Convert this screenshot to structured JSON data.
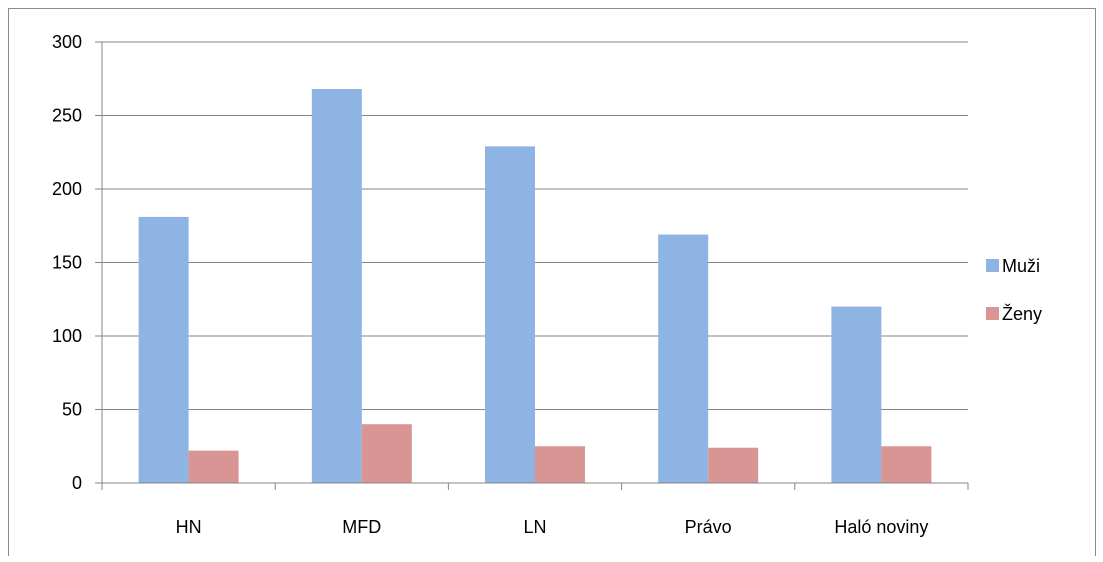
{
  "chart_data": {
    "type": "bar",
    "categories": [
      "HN",
      "MFD",
      "LN",
      "Právo",
      "Haló noviny"
    ],
    "series": [
      {
        "name": "Muži",
        "values": [
          181,
          268,
          229,
          169,
          120
        ],
        "color": "#8EB4E3"
      },
      {
        "name": "Ženy",
        "values": [
          22,
          40,
          25,
          24,
          25
        ],
        "color": "#D99594"
      }
    ],
    "ylim": [
      0,
      300
    ],
    "yticks": [
      0,
      50,
      100,
      150,
      200,
      250,
      300
    ],
    "grid": true,
    "legend_position": "right"
  },
  "colors": {
    "gridline": "#868686",
    "axis": "#868686",
    "frame": "#8c8c8c"
  }
}
